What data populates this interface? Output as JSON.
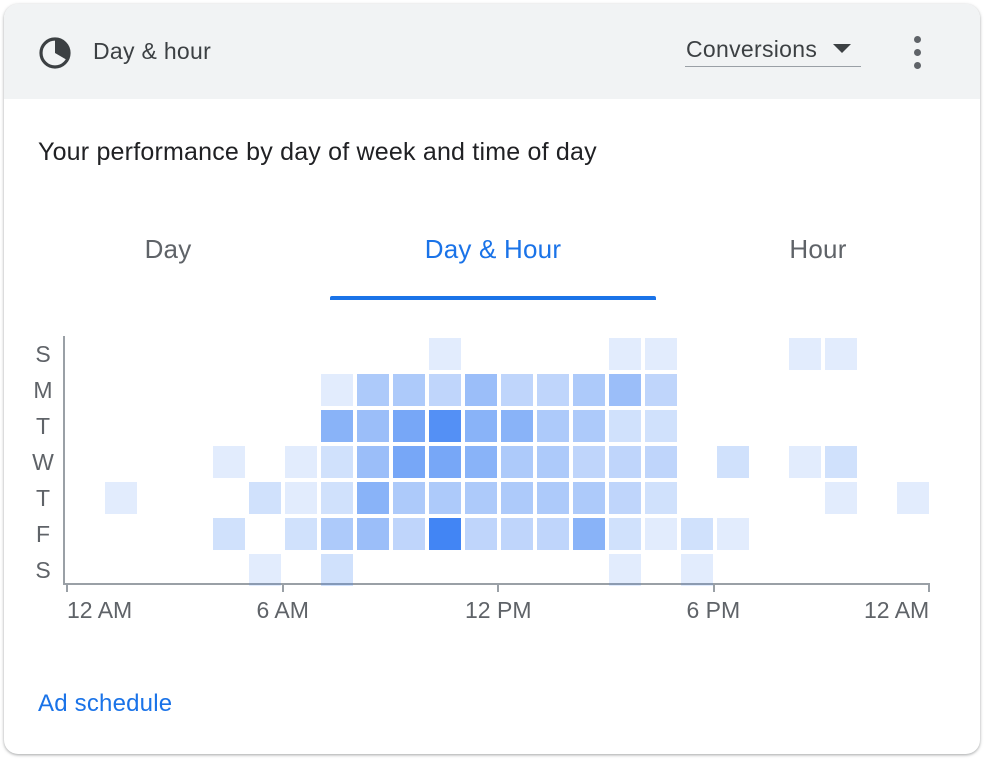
{
  "header": {
    "title": "Day & hour",
    "icon": "timelapse-icon",
    "metric_select": "Conversions",
    "more_icon": "more-vert-icon"
  },
  "subtitle": "Your performance by day of week and time of day",
  "tabs": [
    {
      "label": "Day",
      "active": false
    },
    {
      "label": "Day & Hour",
      "active": true
    },
    {
      "label": "Hour",
      "active": false
    }
  ],
  "footer": {
    "link": "Ad schedule"
  },
  "colors": {
    "accent": "#1a73e8",
    "heat_base": "#4285f4"
  },
  "chart_data": {
    "type": "heatmap",
    "days": [
      "S",
      "M",
      "T",
      "W",
      "T",
      "F",
      "S"
    ],
    "hours": [
      0,
      1,
      2,
      3,
      4,
      5,
      6,
      7,
      8,
      9,
      10,
      11,
      12,
      13,
      14,
      15,
      16,
      17,
      18,
      19,
      20,
      21,
      22,
      23
    ],
    "x_tick_labels": [
      "12 AM",
      "6 AM",
      "12 PM",
      "6 PM",
      "12 AM"
    ],
    "values": [
      [
        0,
        0,
        0,
        0,
        0,
        0,
        0,
        0,
        0,
        0,
        1,
        0,
        0,
        0,
        0,
        1,
        1,
        0,
        0,
        0,
        1,
        1,
        0,
        0
      ],
      [
        0,
        0,
        0,
        0,
        0,
        0,
        0,
        1,
        4,
        4,
        3,
        5,
        3,
        3,
        4,
        5,
        3,
        0,
        0,
        0,
        0,
        0,
        0,
        0
      ],
      [
        0,
        0,
        0,
        0,
        0,
        0,
        0,
        6,
        5,
        7,
        9,
        6,
        6,
        4,
        4,
        2,
        2,
        0,
        0,
        0,
        0,
        0,
        0,
        0
      ],
      [
        0,
        0,
        0,
        0,
        1,
        0,
        1,
        2,
        5,
        7,
        7,
        6,
        4,
        4,
        3,
        3,
        3,
        0,
        2,
        0,
        1,
        2,
        0,
        0
      ],
      [
        0,
        1,
        0,
        0,
        0,
        2,
        1,
        2,
        6,
        4,
        4,
        4,
        4,
        4,
        4,
        3,
        2,
        0,
        0,
        0,
        0,
        1,
        0,
        1
      ],
      [
        0,
        0,
        0,
        0,
        2,
        0,
        2,
        4,
        5,
        3,
        10,
        3,
        3,
        3,
        6,
        2,
        1,
        2,
        1,
        0,
        0,
        0,
        0,
        0
      ],
      [
        0,
        0,
        0,
        0,
        0,
        1,
        0,
        2,
        0,
        0,
        0,
        0,
        0,
        0,
        0,
        1,
        0,
        1,
        0,
        0,
        0,
        0,
        0,
        0
      ]
    ],
    "max_value": 10,
    "grid": false,
    "legend": "none"
  }
}
